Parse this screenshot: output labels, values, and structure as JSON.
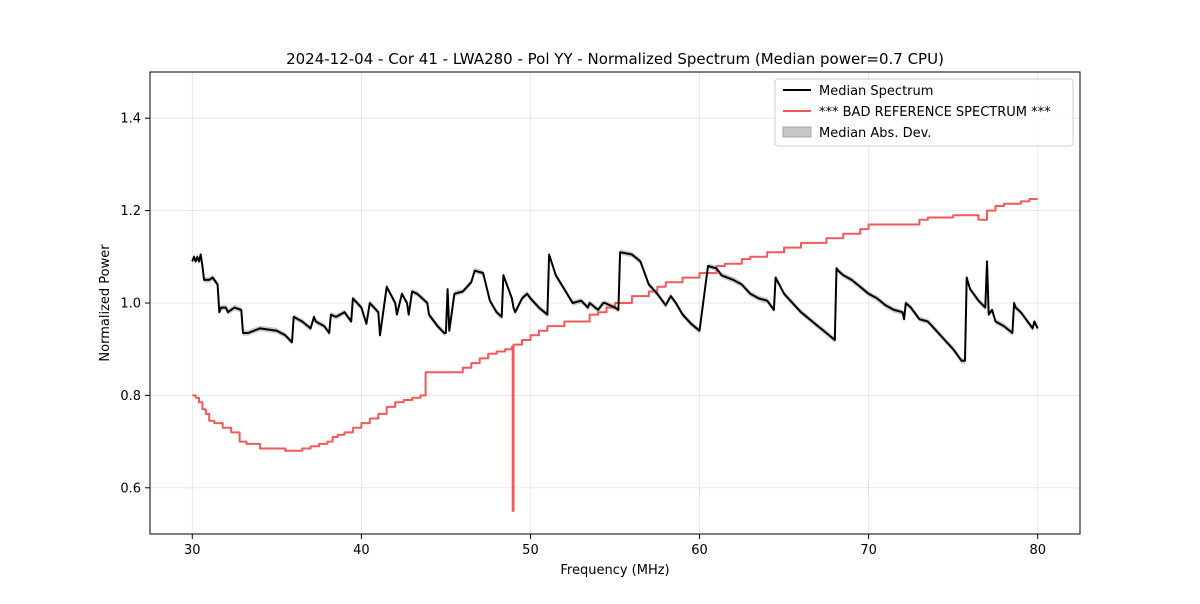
{
  "chart_data": {
    "type": "line",
    "title": "2024-12-04 - Cor 41 - LWA280 - Pol YY - Normalized Spectrum (Median power=0.7 CPU)",
    "xlabel": "Frequency (MHz)",
    "ylabel": "Normalized Power",
    "xlim": [
      27.5,
      82.5
    ],
    "ylim": [
      0.5,
      1.5
    ],
    "xticks": [
      30,
      40,
      50,
      60,
      70,
      80
    ],
    "yticks": [
      0.6,
      0.8,
      1.0,
      1.2,
      1.4
    ],
    "xtick_labels": [
      "30",
      "40",
      "50",
      "60",
      "70",
      "80"
    ],
    "ytick_labels": [
      "0.6",
      "0.8",
      "1.0",
      "1.2",
      "1.4"
    ],
    "grid": true,
    "legend_position": "top-right",
    "legend": {
      "median": "Median Spectrum",
      "reference": "*** BAD REFERENCE SPECTRUM ***",
      "mad": "Median Abs. Dev."
    },
    "series": [
      {
        "name": "Median Spectrum",
        "color": "#000000",
        "x": [
          30.0,
          30.1,
          30.2,
          30.3,
          30.4,
          30.5,
          30.6,
          30.7,
          31.0,
          31.2,
          31.5,
          31.6,
          31.7,
          32.0,
          32.1,
          32.5,
          32.9,
          33.0,
          33.3,
          34.0,
          35.0,
          35.5,
          35.9,
          36.0,
          36.5,
          37.0,
          37.2,
          37.3,
          37.8,
          38.1,
          38.2,
          38.5,
          39.0,
          39.4,
          39.5,
          40.0,
          40.3,
          40.5,
          41.0,
          41.1,
          41.5,
          42.0,
          42.1,
          42.4,
          42.7,
          42.8,
          43.0,
          43.3,
          43.9,
          44.0,
          44.3,
          44.5,
          44.9,
          45.0,
          45.1,
          45.2,
          45.5,
          46.0,
          46.5,
          46.7,
          47.2,
          47.6,
          48.0,
          48.3,
          48.4,
          48.9,
          49.0,
          49.1,
          49.5,
          49.8,
          50.0,
          50.5,
          51.0,
          51.1,
          51.5,
          52.0,
          52.5,
          53.0,
          53.4,
          53.5,
          54.0,
          54.3,
          54.4,
          55.0,
          55.2,
          55.3,
          56.0,
          56.5,
          57.0,
          57.5,
          58.0,
          58.3,
          58.6,
          59.0,
          59.5,
          60.0,
          60.5,
          61.0,
          61.2,
          61.3,
          62.0,
          62.5,
          63.0,
          63.5,
          64.0,
          64.4,
          64.5,
          65.0,
          65.5,
          66.0,
          66.5,
          67.0,
          67.5,
          68.0,
          68.1,
          68.2,
          68.5,
          69.0,
          69.5,
          70.0,
          70.5,
          71.0,
          71.5,
          72.0,
          72.1,
          72.2,
          72.5,
          73.0,
          73.5,
          74.0,
          74.5,
          75.0,
          75.5,
          75.7,
          75.8,
          76.0,
          76.5,
          76.9,
          77.0,
          77.1,
          77.3,
          77.5,
          78.0,
          78.5,
          78.6,
          78.7,
          79.0,
          79.5,
          79.7,
          79.8,
          80.0
        ],
        "y": [
          1.09,
          1.1,
          1.09,
          1.1,
          1.09,
          1.105,
          1.08,
          1.05,
          1.05,
          1.055,
          1.04,
          0.98,
          0.99,
          0.99,
          0.98,
          0.99,
          0.985,
          0.935,
          0.935,
          0.945,
          0.94,
          0.93,
          0.915,
          0.97,
          0.96,
          0.945,
          0.97,
          0.96,
          0.95,
          0.935,
          0.975,
          0.97,
          0.98,
          0.96,
          1.01,
          0.99,
          0.955,
          1.0,
          0.98,
          0.93,
          1.035,
          1.0,
          0.975,
          1.02,
          1.0,
          0.975,
          1.025,
          1.02,
          1.0,
          0.975,
          0.96,
          0.95,
          0.935,
          0.935,
          1.03,
          0.94,
          1.02,
          1.025,
          1.045,
          1.07,
          1.065,
          1.005,
          0.98,
          0.97,
          1.06,
          1.01,
          0.99,
          0.98,
          1.01,
          1.02,
          1.01,
          0.99,
          0.975,
          1.105,
          1.06,
          1.03,
          1.0,
          1.005,
          0.99,
          1.0,
          0.985,
          1.0,
          1.0,
          0.99,
          0.985,
          1.11,
          1.105,
          1.09,
          1.04,
          1.02,
          0.995,
          1.015,
          1.0,
          0.975,
          0.955,
          0.94,
          1.08,
          1.075,
          1.065,
          1.06,
          1.05,
          1.04,
          1.02,
          1.01,
          1.005,
          0.985,
          1.055,
          1.02,
          1.0,
          0.98,
          0.965,
          0.95,
          0.935,
          0.92,
          1.075,
          1.07,
          1.06,
          1.05,
          1.035,
          1.02,
          1.01,
          0.995,
          0.985,
          0.98,
          0.965,
          1.0,
          0.99,
          0.965,
          0.96,
          0.94,
          0.92,
          0.9,
          0.875,
          0.875,
          1.055,
          1.03,
          1.005,
          0.99,
          1.09,
          0.975,
          0.985,
          0.96,
          0.95,
          0.935,
          1.0,
          0.99,
          0.98,
          0.955,
          0.945,
          0.96,
          0.945
        ]
      },
      {
        "name": "*** BAD REFERENCE SPECTRUM ***",
        "color": "#f05a5a",
        "x": [
          30.0,
          30.2,
          30.4,
          30.6,
          30.8,
          31.0,
          31.3,
          31.8,
          32.3,
          32.8,
          33.2,
          34.0,
          35.5,
          36.5,
          37.0,
          37.5,
          38.0,
          38.3,
          38.6,
          39.0,
          39.5,
          40.0,
          40.5,
          41.0,
          41.5,
          42.0,
          42.5,
          43.0,
          43.5,
          43.8,
          45.0,
          46.0,
          46.5,
          47.0,
          47.5,
          48.0,
          48.5,
          48.9,
          48.95,
          49.0,
          49.5,
          50.0,
          50.5,
          51.0,
          52.0,
          53.5,
          54.0,
          54.5,
          55.0,
          56.0,
          57.0,
          57.5,
          58.0,
          59.0,
          60.0,
          61.0,
          61.5,
          62.5,
          63.0,
          64.0,
          65.0,
          66.0,
          67.5,
          68.5,
          69.5,
          70.0,
          71.0,
          72.0,
          73.0,
          73.5,
          75.0,
          76.5,
          77.0,
          77.5,
          78.0,
          79.0,
          79.5,
          80.0
        ],
        "y": [
          0.8,
          0.795,
          0.785,
          0.77,
          0.76,
          0.745,
          0.74,
          0.73,
          0.72,
          0.7,
          0.695,
          0.685,
          0.68,
          0.685,
          0.69,
          0.695,
          0.7,
          0.71,
          0.715,
          0.72,
          0.73,
          0.74,
          0.75,
          0.76,
          0.775,
          0.785,
          0.79,
          0.795,
          0.8,
          0.85,
          0.85,
          0.86,
          0.87,
          0.88,
          0.89,
          0.895,
          0.9,
          0.905,
          0.55,
          0.91,
          0.92,
          0.93,
          0.94,
          0.95,
          0.96,
          0.975,
          0.98,
          0.99,
          1.0,
          1.015,
          1.025,
          1.035,
          1.045,
          1.055,
          1.065,
          1.08,
          1.085,
          1.095,
          1.1,
          1.11,
          1.12,
          1.13,
          1.14,
          1.15,
          1.16,
          1.17,
          1.17,
          1.17,
          1.18,
          1.185,
          1.19,
          1.18,
          1.2,
          1.21,
          1.215,
          1.22,
          1.225,
          1.225
        ]
      }
    ]
  }
}
